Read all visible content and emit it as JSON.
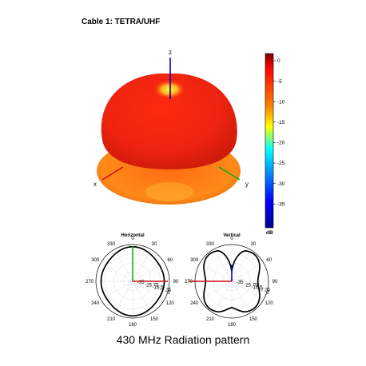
{
  "title": "Cable 1: TETRA/UHF",
  "caption": "430 MHz Radiation pattern",
  "axes3d": {
    "x": "x",
    "y": "y",
    "z": "z"
  },
  "colorbar": {
    "unit": "dB",
    "ticks": [
      "0",
      "-5",
      "-10",
      "-15",
      "-20",
      "-25",
      "-30",
      "-35"
    ],
    "range": [
      -35,
      2
    ],
    "colors": [
      "#7f0000",
      "#ff0000",
      "#ff8000",
      "#ffff00",
      "#00ffff",
      "#0080ff",
      "#0000ff",
      "#00008f"
    ]
  },
  "pattern_color": "#e8301a",
  "polar_plots": [
    {
      "title": "Horizontal",
      "angle_labels": [
        "0",
        "330",
        "300",
        "270",
        "240",
        "210",
        "180",
        "150",
        "120",
        "90",
        "60",
        "30"
      ],
      "ring_labels": [
        "-35",
        "-25.75",
        "-16.5",
        "-7.25",
        "2"
      ]
    },
    {
      "title": "Vertical",
      "angle_labels": [
        "0",
        "330",
        "300",
        "270",
        "240",
        "210",
        "180",
        "150",
        "120",
        "90",
        "60",
        "30"
      ],
      "ring_labels": [
        "-35",
        "-25.75",
        "-16.5",
        "-7.25",
        "2"
      ]
    }
  ]
}
